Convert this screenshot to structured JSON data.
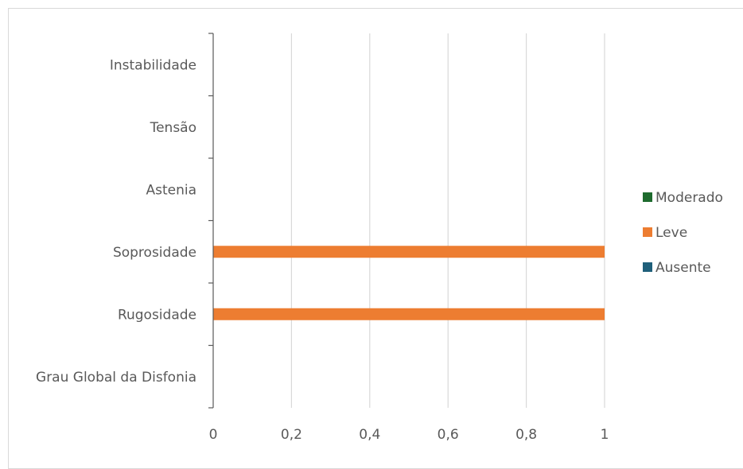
{
  "chart_data": {
    "type": "bar",
    "orientation": "horizontal",
    "stacked": true,
    "title": "",
    "xlabel": "",
    "ylabel": "",
    "categories": [
      "Grau Global da Disfonia",
      "Rugosidade",
      "Soprosidade",
      "Astenia",
      "Tensão",
      "Instabilidade"
    ],
    "series": [
      {
        "name": "Ausente",
        "color": "#1f5f7a",
        "values": [
          0,
          0,
          0,
          0,
          0,
          0
        ]
      },
      {
        "name": "Leve",
        "color": "#ed7d31",
        "values": [
          0,
          1,
          1,
          0,
          0,
          0
        ]
      },
      {
        "name": "Moderado",
        "color": "#1e6b2e",
        "values": [
          0,
          0,
          0,
          0,
          0,
          0
        ]
      }
    ],
    "xlim": [
      0,
      1
    ],
    "x_ticks": [
      "0",
      "0,2",
      "0,4",
      "0,6",
      "0,8",
      "1"
    ],
    "x_tick_values": [
      0,
      0.2,
      0.4,
      0.6,
      0.8,
      1
    ],
    "grid": true,
    "legend_position": "right",
    "legend_order": [
      "Moderado",
      "Leve",
      "Ausente"
    ]
  }
}
